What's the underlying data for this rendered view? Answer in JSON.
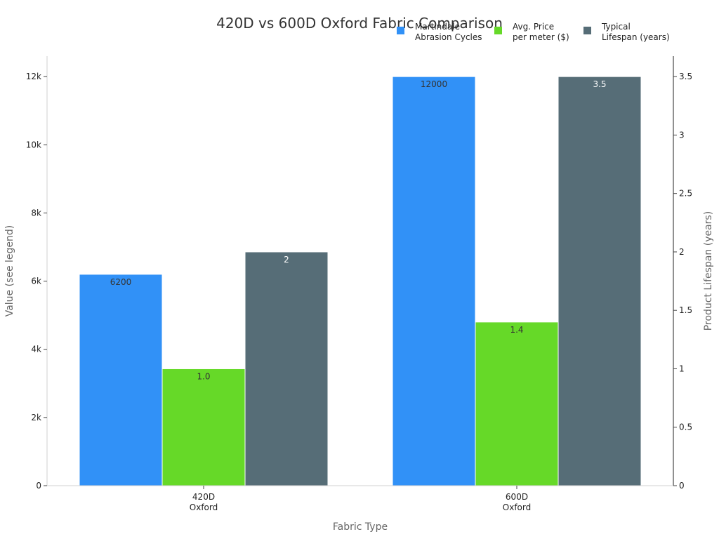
{
  "chart_data": {
    "type": "bar",
    "title": "420D vs 600D Oxford Fabric Comparison",
    "xlabel": "Fabric Type",
    "ylabel": "Value (see legend)",
    "ylabel_right": "Product Lifespan (years)",
    "categories": [
      {
        "line1": "420D",
        "line2": "Oxford"
      },
      {
        "line1": "600D",
        "line2": "Oxford"
      }
    ],
    "ylim": [
      0,
      12600
    ],
    "ylim_right": [
      0,
      3.675
    ],
    "yticks": [
      0,
      2000,
      4000,
      6000,
      8000,
      10000,
      12000
    ],
    "ytick_labels": [
      "0",
      "2k",
      "4k",
      "6k",
      "8k",
      "10k",
      "12k"
    ],
    "yticks_right": [
      0,
      0.5,
      1,
      1.5,
      2,
      2.5,
      3,
      3.5
    ],
    "ytick_labels_right": [
      "0",
      "0.5",
      "1",
      "1.5",
      "2",
      "2.5",
      "3",
      "3.5"
    ],
    "legend_position": "top-right",
    "series": [
      {
        "name_line1": "Martindale",
        "name_line2": "Abrasion Cycles",
        "color": "#3191F7",
        "axis": "left",
        "values": [
          6200,
          12000
        ],
        "value_labels": [
          "6200",
          "12000"
        ]
      },
      {
        "name_line1": "Avg. Price",
        "name_line2": "per meter ($)",
        "color": "#66D928",
        "axis": "price",
        "scale_max": 3.675,
        "values": [
          1.0,
          1.4
        ],
        "value_labels": [
          "1.0",
          "1.4"
        ]
      },
      {
        "name_line1": "Typical",
        "name_line2": "Lifespan (years)",
        "color": "#566D77",
        "axis": "right",
        "values": [
          2,
          3.5
        ],
        "value_labels": [
          "2",
          "3.5"
        ]
      }
    ]
  }
}
